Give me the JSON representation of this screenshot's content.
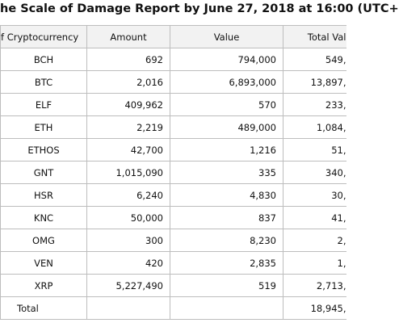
{
  "title": "he Scale of Damage Report by June 27, 2018 at 16:00 (UTC+",
  "table": {
    "header": [
      "f Cryptocurrency",
      "Amount",
      "Value",
      "Total Val"
    ],
    "rows": [
      [
        "BCH",
        "692",
        "794,000",
        "549,"
      ],
      [
        "BTC",
        "2,016",
        "6,893,000",
        "13,897,"
      ],
      [
        "ELF",
        "409,962",
        "570",
        "233,"
      ],
      [
        "ETH",
        "2,219",
        "489,000",
        "1,084,"
      ],
      [
        "ETHOS",
        "42,700",
        "1,216",
        "51,"
      ],
      [
        "GNT",
        "1,015,090",
        "335",
        "340,"
      ],
      [
        "HSR",
        "6,240",
        "4,830",
        "30,"
      ],
      [
        "KNC",
        "50,000",
        "837",
        "41,"
      ],
      [
        "OMG",
        "300",
        "8,230",
        "2,"
      ],
      [
        "VEN",
        "420",
        "2,835",
        "1,"
      ],
      [
        "XRP",
        "5,227,490",
        "519",
        "2,713,"
      ]
    ],
    "total": {
      "label": "Total",
      "value": "18,945,"
    }
  }
}
